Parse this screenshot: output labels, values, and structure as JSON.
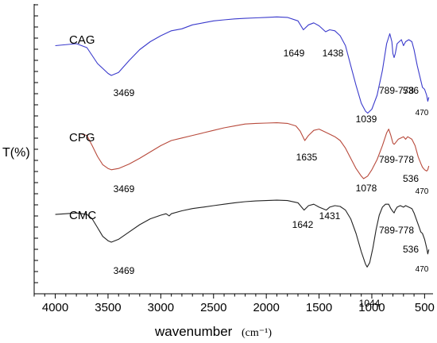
{
  "chart_data": {
    "type": "line",
    "xlabel": "wavenumber",
    "xlabel_unit": "(cm⁻¹)",
    "ylabel": "T(%)",
    "xlim": [
      4200,
      420
    ],
    "x_reversed": true,
    "x_ticks": [
      "4000",
      "3500",
      "3000",
      "2500",
      "2000",
      "1500",
      "1000",
      "500"
    ],
    "x_tick_values": [
      4000,
      3500,
      3000,
      2500,
      2000,
      1500,
      1000,
      500
    ],
    "y_ticks_numbered": false,
    "grid": false,
    "colors": {
      "CAG": "#3a3acc",
      "CPG": "#b84a3c",
      "CMC": "#222222"
    },
    "series": [
      {
        "name": "CAG",
        "points": [
          [
            4000,
            0.7
          ],
          [
            3800,
            0.72
          ],
          [
            3700,
            0.68
          ],
          [
            3600,
            0.52
          ],
          [
            3500,
            0.42
          ],
          [
            3469,
            0.4
          ],
          [
            3400,
            0.43
          ],
          [
            3300,
            0.55
          ],
          [
            3200,
            0.66
          ],
          [
            3100,
            0.74
          ],
          [
            3000,
            0.8
          ],
          [
            2900,
            0.85
          ],
          [
            2800,
            0.87
          ],
          [
            2700,
            0.91
          ],
          [
            2600,
            0.93
          ],
          [
            2500,
            0.95
          ],
          [
            2400,
            0.96
          ],
          [
            2300,
            0.97
          ],
          [
            2200,
            0.975
          ],
          [
            2100,
            0.98
          ],
          [
            2000,
            0.985
          ],
          [
            1900,
            0.99
          ],
          [
            1800,
            0.985
          ],
          [
            1700,
            0.95
          ],
          [
            1649,
            0.86
          ],
          [
            1600,
            0.91
          ],
          [
            1550,
            0.93
          ],
          [
            1500,
            0.9
          ],
          [
            1438,
            0.84
          ],
          [
            1400,
            0.86
          ],
          [
            1350,
            0.85
          ],
          [
            1300,
            0.8
          ],
          [
            1250,
            0.7
          ],
          [
            1200,
            0.5
          ],
          [
            1150,
            0.3
          ],
          [
            1100,
            0.12
          ],
          [
            1060,
            0.04
          ],
          [
            1039,
            0.02
          ],
          [
            1000,
            0.06
          ],
          [
            950,
            0.2
          ],
          [
            900,
            0.45
          ],
          [
            860,
            0.72
          ],
          [
            830,
            0.82
          ],
          [
            810,
            0.74
          ],
          [
            800,
            0.62
          ],
          [
            789,
            0.58
          ],
          [
            778,
            0.62
          ],
          [
            760,
            0.72
          ],
          [
            720,
            0.76
          ],
          [
            700,
            0.7
          ],
          [
            680,
            0.74
          ],
          [
            650,
            0.76
          ],
          [
            620,
            0.74
          ],
          [
            600,
            0.66
          ],
          [
            570,
            0.5
          ],
          [
            536,
            0.35
          ],
          [
            520,
            0.28
          ],
          [
            500,
            0.26
          ],
          [
            480,
            0.2
          ],
          [
            470,
            0.14
          ],
          [
            460,
            0.18
          ]
        ],
        "annotations": [
          {
            "text": "3469",
            "x": 3469
          },
          {
            "text": "1649",
            "x": 1649
          },
          {
            "text": "1438",
            "x": 1438
          },
          {
            "text": "1039",
            "x": 1039
          },
          {
            "text": "789-778",
            "x": 789
          },
          {
            "text": "536",
            "x": 536
          },
          {
            "text": "470",
            "x": 470
          }
        ]
      },
      {
        "name": "CPG",
        "points": [
          [
            3750,
            0.8
          ],
          [
            3700,
            0.78
          ],
          [
            3650,
            0.62
          ],
          [
            3600,
            0.45
          ],
          [
            3550,
            0.32
          ],
          [
            3500,
            0.26
          ],
          [
            3469,
            0.24
          ],
          [
            3400,
            0.26
          ],
          [
            3300,
            0.33
          ],
          [
            3200,
            0.42
          ],
          [
            3100,
            0.52
          ],
          [
            3000,
            0.62
          ],
          [
            2900,
            0.7
          ],
          [
            2800,
            0.74
          ],
          [
            2700,
            0.78
          ],
          [
            2600,
            0.82
          ],
          [
            2500,
            0.86
          ],
          [
            2400,
            0.9
          ],
          [
            2300,
            0.93
          ],
          [
            2200,
            0.96
          ],
          [
            2100,
            0.97
          ],
          [
            2000,
            0.975
          ],
          [
            1900,
            0.98
          ],
          [
            1800,
            0.97
          ],
          [
            1720,
            0.93
          ],
          [
            1680,
            0.85
          ],
          [
            1635,
            0.7
          ],
          [
            1600,
            0.78
          ],
          [
            1550,
            0.86
          ],
          [
            1500,
            0.88
          ],
          [
            1450,
            0.84
          ],
          [
            1400,
            0.8
          ],
          [
            1350,
            0.76
          ],
          [
            1300,
            0.7
          ],
          [
            1250,
            0.58
          ],
          [
            1200,
            0.42
          ],
          [
            1150,
            0.26
          ],
          [
            1100,
            0.14
          ],
          [
            1078,
            0.1
          ],
          [
            1040,
            0.14
          ],
          [
            1000,
            0.24
          ],
          [
            950,
            0.4
          ],
          [
            900,
            0.62
          ],
          [
            860,
            0.82
          ],
          [
            840,
            0.88
          ],
          [
            820,
            0.78
          ],
          [
            800,
            0.66
          ],
          [
            789,
            0.64
          ],
          [
            778,
            0.66
          ],
          [
            750,
            0.72
          ],
          [
            700,
            0.76
          ],
          [
            680,
            0.72
          ],
          [
            660,
            0.76
          ],
          [
            620,
            0.72
          ],
          [
            590,
            0.62
          ],
          [
            560,
            0.44
          ],
          [
            536,
            0.34
          ],
          [
            520,
            0.28
          ],
          [
            500,
            0.24
          ],
          [
            480,
            0.22
          ],
          [
            470,
            0.24
          ],
          [
            460,
            0.3
          ]
        ],
        "annotations": [
          {
            "text": "3469",
            "x": 3469
          },
          {
            "text": "1635",
            "x": 1635
          },
          {
            "text": "1078",
            "x": 1078
          },
          {
            "text": "789-778",
            "x": 789
          },
          {
            "text": "536",
            "x": 536
          },
          {
            "text": "470",
            "x": 470
          }
        ]
      },
      {
        "name": "CMC",
        "points": [
          [
            4000,
            0.76
          ],
          [
            3900,
            0.77
          ],
          [
            3800,
            0.78
          ],
          [
            3700,
            0.76
          ],
          [
            3650,
            0.7
          ],
          [
            3600,
            0.58
          ],
          [
            3550,
            0.46
          ],
          [
            3500,
            0.4
          ],
          [
            3469,
            0.38
          ],
          [
            3400,
            0.42
          ],
          [
            3300,
            0.52
          ],
          [
            3200,
            0.62
          ],
          [
            3100,
            0.7
          ],
          [
            3000,
            0.75
          ],
          [
            2950,
            0.77
          ],
          [
            2920,
            0.74
          ],
          [
            2900,
            0.77
          ],
          [
            2800,
            0.81
          ],
          [
            2700,
            0.84
          ],
          [
            2600,
            0.86
          ],
          [
            2500,
            0.88
          ],
          [
            2400,
            0.9
          ],
          [
            2300,
            0.92
          ],
          [
            2200,
            0.935
          ],
          [
            2100,
            0.945
          ],
          [
            2000,
            0.95
          ],
          [
            1900,
            0.955
          ],
          [
            1800,
            0.95
          ],
          [
            1700,
            0.92
          ],
          [
            1642,
            0.82
          ],
          [
            1600,
            0.88
          ],
          [
            1550,
            0.9
          ],
          [
            1500,
            0.86
          ],
          [
            1431,
            0.82
          ],
          [
            1400,
            0.86
          ],
          [
            1350,
            0.88
          ],
          [
            1300,
            0.87
          ],
          [
            1250,
            0.82
          ],
          [
            1200,
            0.7
          ],
          [
            1150,
            0.5
          ],
          [
            1100,
            0.25
          ],
          [
            1060,
            0.08
          ],
          [
            1044,
            0.04
          ],
          [
            1020,
            0.1
          ],
          [
            990,
            0.3
          ],
          [
            960,
            0.55
          ],
          [
            930,
            0.75
          ],
          [
            900,
            0.86
          ],
          [
            870,
            0.9
          ],
          [
            840,
            0.9
          ],
          [
            820,
            0.84
          ],
          [
            800,
            0.8
          ],
          [
            789,
            0.78
          ],
          [
            778,
            0.82
          ],
          [
            760,
            0.86
          ],
          [
            730,
            0.88
          ],
          [
            700,
            0.86
          ],
          [
            680,
            0.88
          ],
          [
            650,
            0.86
          ],
          [
            620,
            0.84
          ],
          [
            600,
            0.78
          ],
          [
            570,
            0.66
          ],
          [
            550,
            0.58
          ],
          [
            536,
            0.52
          ],
          [
            520,
            0.5
          ],
          [
            500,
            0.42
          ],
          [
            480,
            0.3
          ],
          [
            470,
            0.22
          ],
          [
            460,
            0.28
          ]
        ],
        "annotations": [
          {
            "text": "3469",
            "x": 3469
          },
          {
            "text": "1642",
            "x": 1642
          },
          {
            "text": "1431",
            "x": 1431
          },
          {
            "text": "1044",
            "x": 1044
          },
          {
            "text": "789-778",
            "x": 789
          },
          {
            "text": "536",
            "x": 536
          },
          {
            "text": "470",
            "x": 470
          }
        ]
      }
    ]
  }
}
